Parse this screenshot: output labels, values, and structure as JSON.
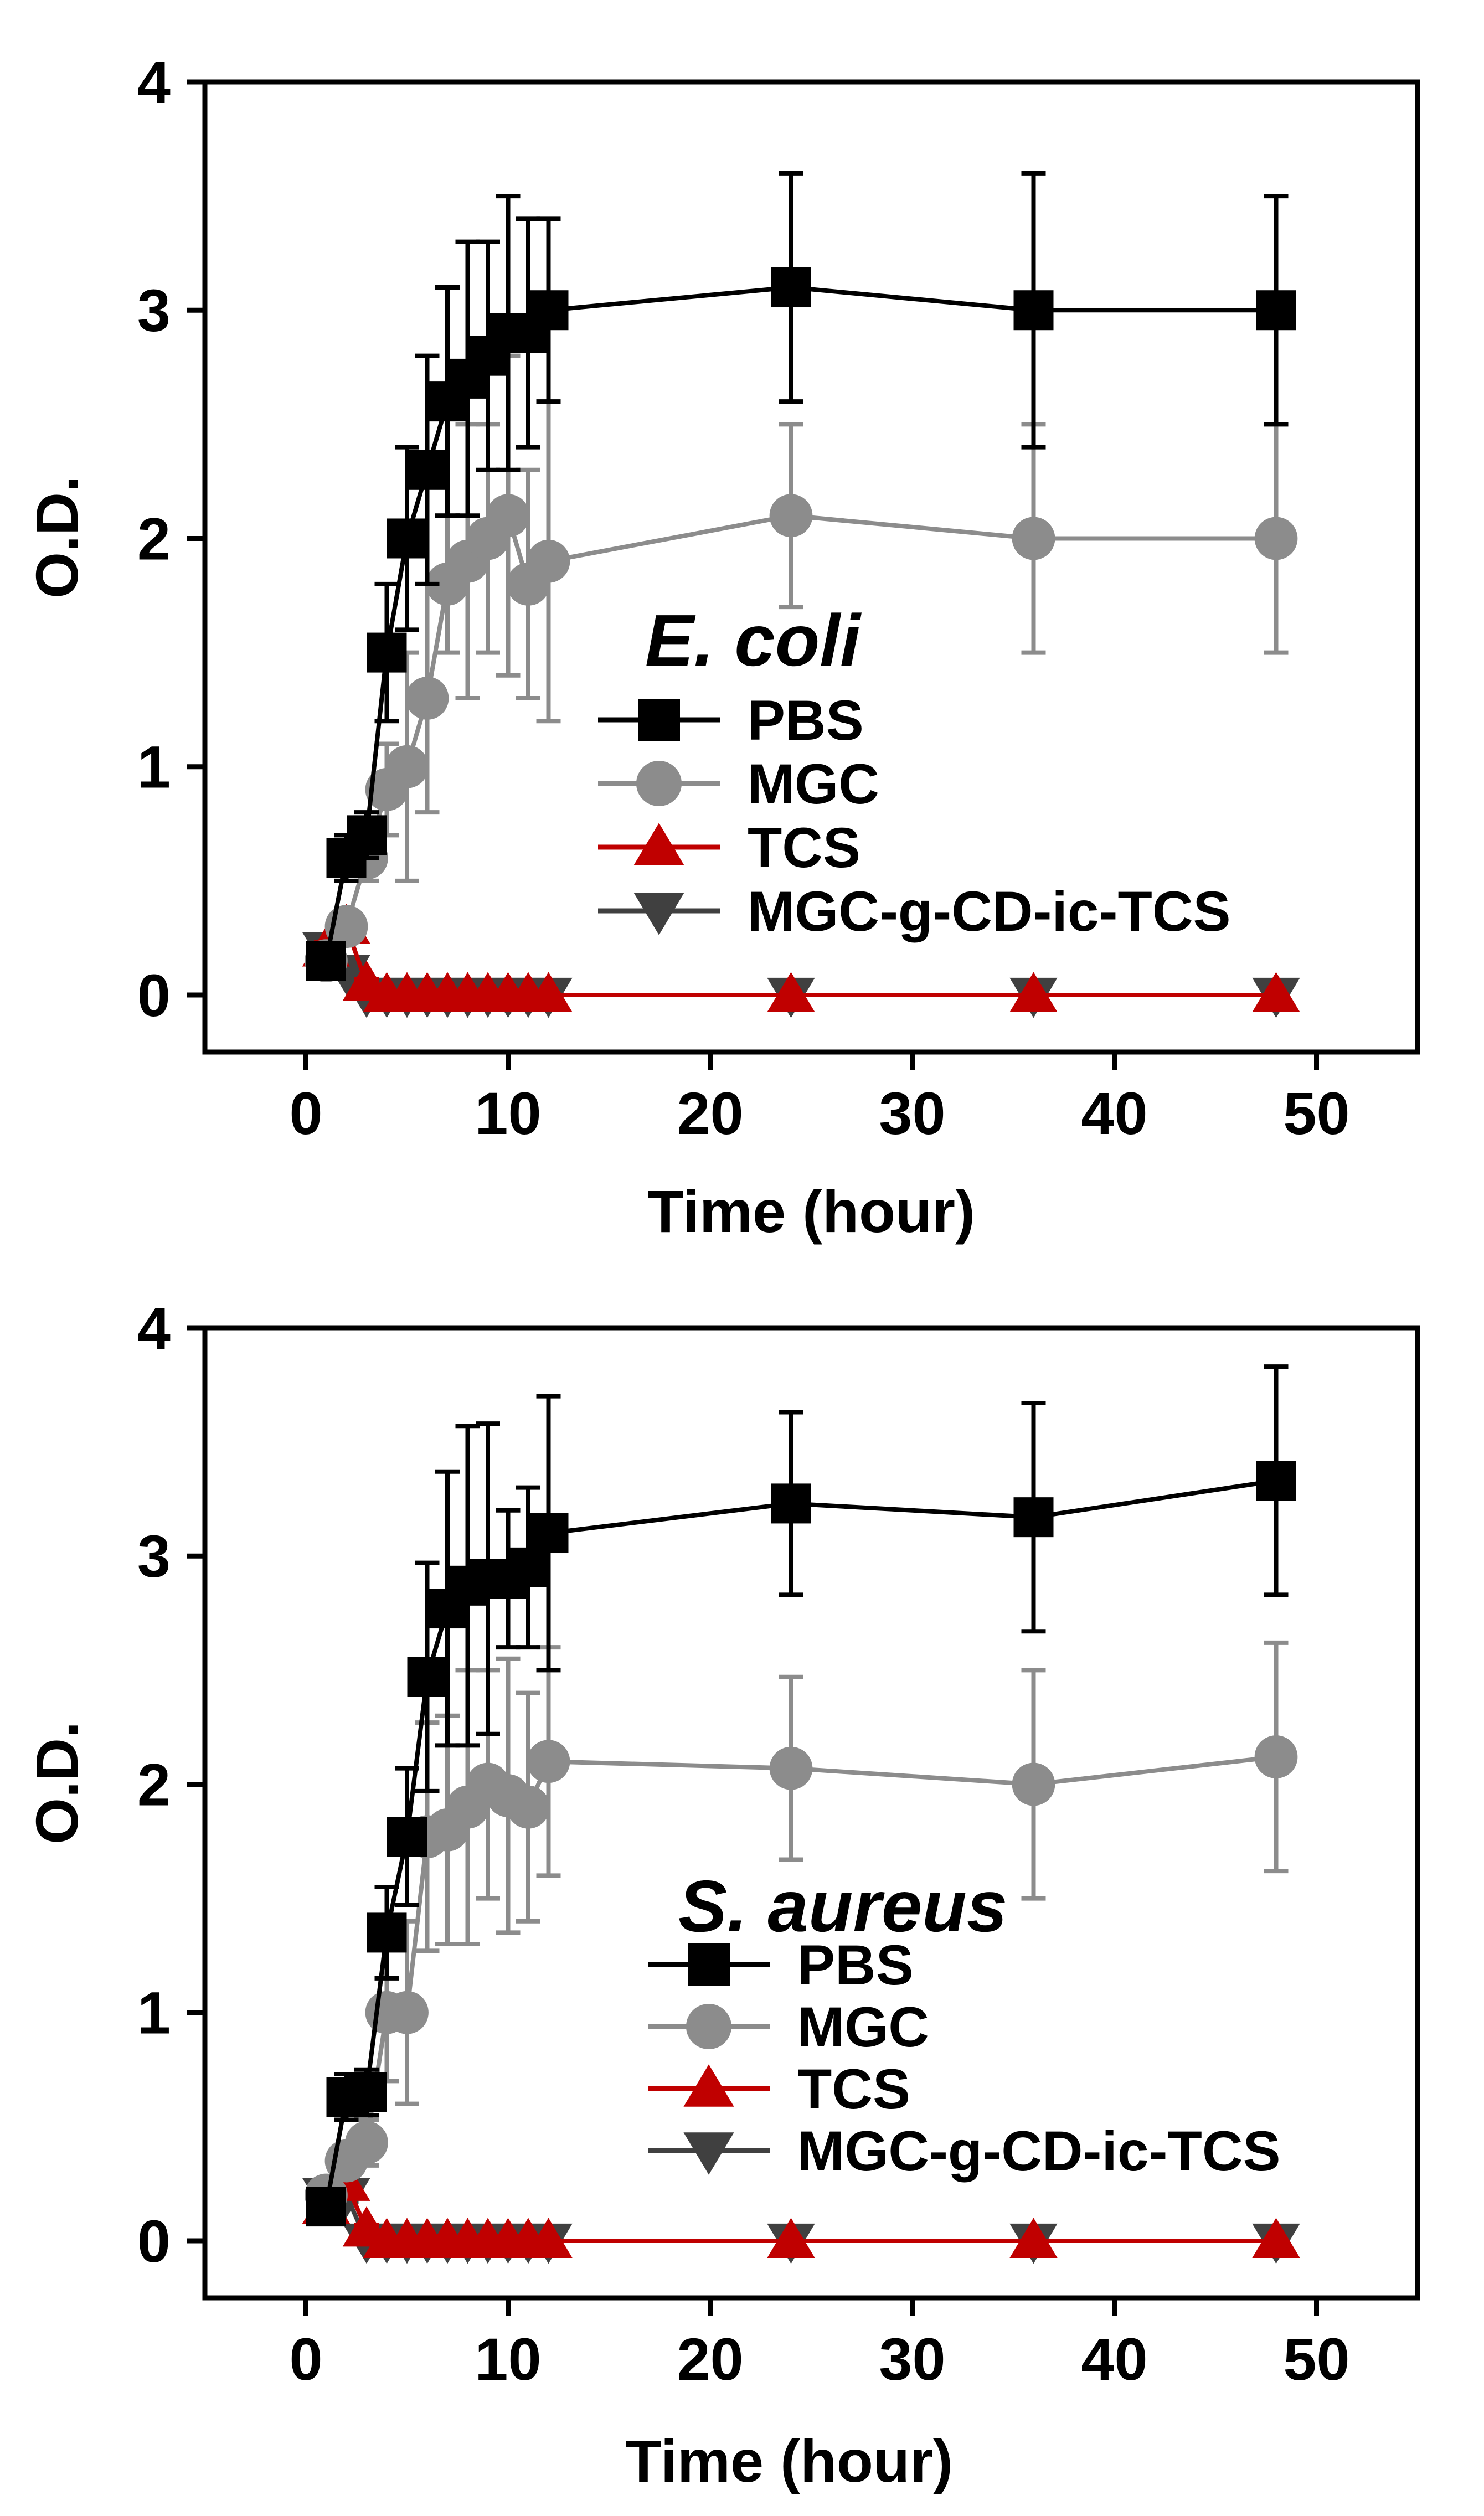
{
  "chart_data": [
    {
      "type": "line",
      "panel": "top",
      "title": "E. coli",
      "xlabel": "Time (hour)",
      "ylabel": "O.D.",
      "xlim": [
        -5,
        55
      ],
      "ylim": [
        -0.25,
        4
      ],
      "xticks": [
        0,
        10,
        20,
        30,
        40,
        50
      ],
      "yticks": [
        0,
        1,
        2,
        3,
        4
      ],
      "legend_position": "center-right",
      "series": [
        {
          "name": "PBS",
          "color": "#000000",
          "marker": "square",
          "x": [
            1,
            2,
            3,
            4,
            5,
            6,
            7,
            8,
            9,
            10,
            11,
            12,
            24,
            36,
            48
          ],
          "y": [
            0.15,
            0.6,
            0.7,
            1.5,
            2.0,
            2.3,
            2.6,
            2.7,
            2.8,
            2.9,
            2.9,
            3.0,
            3.1,
            3.0,
            3.0
          ],
          "err": [
            0.05,
            0.1,
            0.1,
            0.3,
            0.4,
            0.5,
            0.5,
            0.6,
            0.5,
            0.6,
            0.5,
            0.4,
            0.5,
            0.6,
            0.5
          ]
        },
        {
          "name": "MGC",
          "color": "#8c8c8c",
          "marker": "circle",
          "x": [
            1,
            2,
            3,
            4,
            5,
            6,
            7,
            8,
            9,
            10,
            11,
            12,
            24,
            36,
            48
          ],
          "y": [
            0.15,
            0.3,
            0.6,
            0.9,
            1.0,
            1.3,
            1.8,
            1.9,
            2.0,
            2.1,
            1.8,
            1.9,
            2.1,
            2.0,
            2.0
          ],
          "err": [
            0.05,
            0.05,
            0.1,
            0.2,
            0.5,
            0.5,
            0.3,
            0.6,
            0.5,
            0.7,
            0.5,
            0.7,
            0.4,
            0.5,
            0.5
          ]
        },
        {
          "name": "TCS",
          "color": "#c00000",
          "marker": "triangle-up",
          "x": [
            1,
            2,
            3,
            4,
            5,
            6,
            7,
            8,
            9,
            10,
            11,
            12,
            24,
            36,
            48
          ],
          "y": [
            0.2,
            0.3,
            0.05,
            0,
            0,
            0,
            0,
            0,
            0,
            0,
            0,
            0,
            0,
            0,
            0
          ],
          "err": [
            0.03,
            0.05,
            0.02,
            0,
            0,
            0,
            0,
            0,
            0,
            0,
            0,
            0,
            0,
            0,
            0
          ]
        },
        {
          "name": "MGC-g-CD-ic-TCS",
          "color": "#404040",
          "marker": "triangle-down",
          "x": [
            1,
            2,
            3,
            4,
            5,
            6,
            7,
            8,
            9,
            10,
            11,
            12,
            24,
            36,
            48
          ],
          "y": [
            0.2,
            0.1,
            0,
            0,
            0,
            0,
            0,
            0,
            0,
            0,
            0,
            0,
            0,
            0,
            0
          ],
          "err": [
            0.03,
            0.02,
            0,
            0,
            0,
            0,
            0,
            0,
            0,
            0,
            0,
            0,
            0,
            0,
            0
          ]
        }
      ]
    },
    {
      "type": "line",
      "panel": "bottom",
      "title": "S. aureus",
      "xlabel": "Time (hour)",
      "ylabel": "O.D.",
      "xlim": [
        -5,
        55
      ],
      "ylim": [
        -0.25,
        4
      ],
      "xticks": [
        0,
        10,
        20,
        30,
        40,
        50
      ],
      "yticks": [
        0,
        1,
        2,
        3,
        4
      ],
      "legend_position": "lower-right",
      "series": [
        {
          "name": "PBS",
          "color": "#000000",
          "marker": "square",
          "x": [
            1,
            2,
            3,
            4,
            5,
            6,
            7,
            8,
            9,
            10,
            11,
            12,
            24,
            36,
            48
          ],
          "y": [
            0.15,
            0.63,
            0.65,
            1.35,
            1.77,
            2.47,
            2.77,
            2.87,
            2.9,
            2.9,
            2.95,
            3.1,
            3.23,
            3.17,
            3.33
          ],
          "err": [
            0.05,
            0.1,
            0.1,
            0.2,
            0.3,
            0.5,
            0.6,
            0.7,
            0.68,
            0.3,
            0.35,
            0.6,
            0.4,
            0.5,
            0.5
          ]
        },
        {
          "name": "MGC",
          "color": "#8c8c8c",
          "marker": "circle",
          "x": [
            1,
            2,
            3,
            4,
            5,
            6,
            7,
            8,
            9,
            10,
            11,
            12,
            24,
            36,
            48
          ],
          "y": [
            0.2,
            0.35,
            0.43,
            1.0,
            1.0,
            1.77,
            1.8,
            1.9,
            2.0,
            1.95,
            1.9,
            2.1,
            2.07,
            2.0,
            2.12
          ],
          "err": [
            0.05,
            0.05,
            0.1,
            0.3,
            0.4,
            0.5,
            0.5,
            0.6,
            0.5,
            0.6,
            0.5,
            0.5,
            0.4,
            0.5,
            0.5
          ]
        },
        {
          "name": "TCS",
          "color": "#c00000",
          "marker": "triangle-up",
          "x": [
            1,
            2,
            3,
            4,
            5,
            6,
            7,
            8,
            9,
            10,
            11,
            12,
            24,
            36,
            48
          ],
          "y": [
            0.15,
            0.25,
            0.05,
            0,
            0,
            0,
            0,
            0,
            0,
            0,
            0,
            0,
            0,
            0,
            0
          ],
          "err": [
            0.03,
            0.05,
            0.02,
            0,
            0,
            0,
            0,
            0,
            0,
            0,
            0,
            0,
            0,
            0,
            0
          ]
        },
        {
          "name": "MGC-g-CD-ic-TCS",
          "color": "#404040",
          "marker": "triangle-down",
          "x": [
            1,
            2,
            3,
            4,
            5,
            6,
            7,
            8,
            9,
            10,
            11,
            12,
            24,
            36,
            48
          ],
          "y": [
            0.2,
            0.2,
            0,
            0,
            0,
            0,
            0,
            0,
            0,
            0,
            0,
            0,
            0,
            0,
            0
          ],
          "err": [
            0.03,
            0.03,
            0,
            0,
            0,
            0,
            0,
            0,
            0,
            0,
            0,
            0,
            0,
            0,
            0
          ]
        }
      ]
    }
  ]
}
